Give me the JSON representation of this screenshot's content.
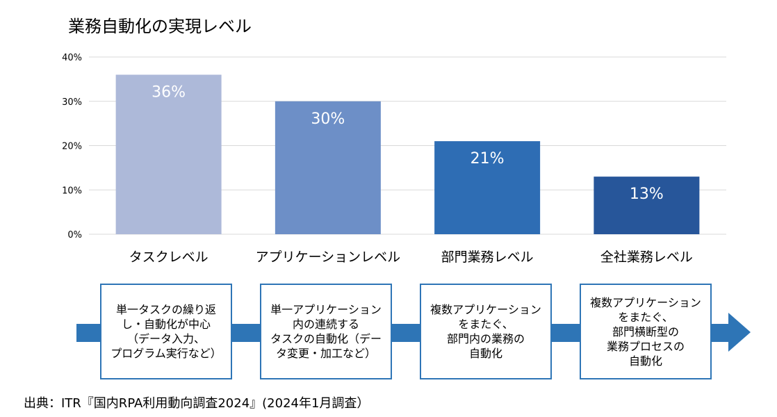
{
  "title": "業務自動化の実現レベル",
  "chart_data": {
    "type": "bar",
    "title": "業務自動化の実現レベル",
    "categories": [
      "タスクレベル",
      "アプリケーションレベル",
      "部門業務レベル",
      "全社業務レベル"
    ],
    "values": [
      36,
      30,
      21,
      13
    ],
    "value_labels": [
      "36%",
      "30%",
      "21%",
      "13%"
    ],
    "colors": [
      "#adb9d9",
      "#6d8fc7",
      "#2e6db4",
      "#27569a"
    ],
    "ylim": [
      0,
      40
    ],
    "yticks": [
      "0%",
      "10%",
      "20%",
      "30%",
      "40%"
    ],
    "xlabel": "",
    "ylabel": "",
    "grid": true
  },
  "flow_boxes": [
    "単一タスクの繰り返\nし・自動化が中心\n（データ入力、\nプログラム実行など）",
    "単一アプリケーション\n内の連続する\nタスクの自動化（デー\nタ変更・加工など）",
    "複数アプリケーション\nをまたぐ、\n部門内の業務の\n自動化",
    "複数アプリケーション\nをまたぐ、\n部門横断型の\n業務プロセスの\n自動化"
  ],
  "colors": {
    "arrow": "#2e75b6",
    "grid": "#d9d9d9"
  },
  "source": "出典：ITR『国内RPA利用動向調査2024』(2024年1月調査）"
}
